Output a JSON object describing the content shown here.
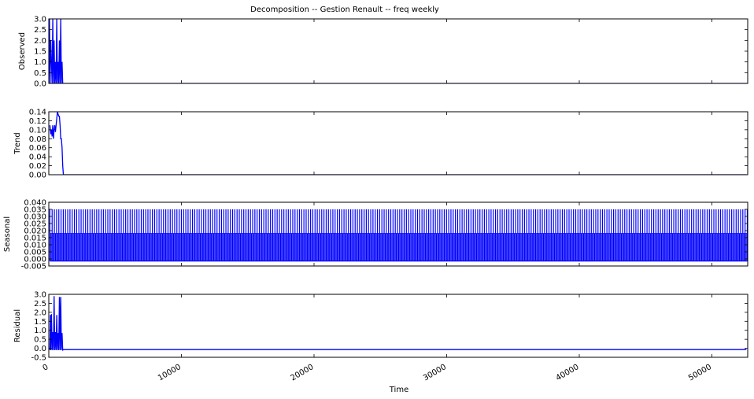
{
  "title": "Decomposition -- Gestion Renault -- freq weekly",
  "colors": {
    "line": "#0000ff",
    "axes": "#000000",
    "background": "#ffffff"
  },
  "chart_data": {
    "type": "line",
    "title": "Decomposition -- Gestion Renault -- freq weekly",
    "xlabel": "Time",
    "xlim": [
      0,
      52700
    ],
    "x_ticks": [
      0,
      10000,
      20000,
      30000,
      40000,
      50000
    ],
    "x_tick_labels": [
      "0",
      "10000",
      "20000",
      "30000",
      "40000",
      "50000"
    ],
    "panels": [
      {
        "key": "observed",
        "ylabel": "Observed",
        "ylim": [
          0,
          3.0
        ],
        "y_ticks": [
          0,
          0.5,
          1.0,
          1.5,
          2.0,
          2.5,
          3.0
        ],
        "y_tick_labels": [
          "0.0",
          "0.5",
          "1.0",
          "1.5",
          "2.0",
          "2.5",
          "3.0"
        ],
        "series": [
          {
            "x": [
              0,
              50,
              100,
              150,
              250,
              300,
              350,
              400,
              450,
              500,
              550,
              600,
              650,
              700,
              750,
              800,
              850,
              900,
              950,
              1000,
              1050,
              1100,
              52700
            ],
            "y": [
              0,
              3,
              0,
              2,
              0,
              3,
              0,
              2,
              0,
              1,
              0,
              3,
              0,
              1,
              0,
              2,
              0,
              3,
              0,
              1,
              0,
              0,
              0
            ]
          }
        ]
      },
      {
        "key": "trend",
        "ylabel": "Trend",
        "ylim": [
          0,
          0.14
        ],
        "y_ticks": [
          0,
          0.02,
          0.04,
          0.06,
          0.08,
          0.1,
          0.12,
          0.14
        ],
        "y_tick_labels": [
          "0.00",
          "0.02",
          "0.04",
          "0.06",
          "0.08",
          "0.10",
          "0.12",
          "0.14"
        ],
        "series": [
          {
            "x": [
              84,
              150,
              200,
              250,
              300,
              350,
              400,
              450,
              500,
              550,
              600,
              650,
              700,
              750,
              800,
              850,
              900,
              950,
              1000,
              1050,
              1100,
              52600
            ],
            "y": [
              0.11,
              0.09,
              0.1,
              0.085,
              0.11,
              0.08,
              0.1,
              0.11,
              0.095,
              0.11,
              0.125,
              0.14,
              0.135,
              0.13,
              0.13,
              0.11,
              0.08,
              0.08,
              0.06,
              0.02,
              0.0,
              0.0
            ]
          }
        ]
      },
      {
        "key": "seasonal",
        "ylabel": "Seasonal",
        "ylim": [
          -0.005,
          0.04
        ],
        "y_ticks": [
          -0.005,
          0,
          0.005,
          0.01,
          0.015,
          0.02,
          0.025,
          0.03,
          0.035,
          0.04
        ],
        "y_tick_labels": [
          "-0.005",
          "0.000",
          "0.005",
          "0.010",
          "0.015",
          "0.020",
          "0.025",
          "0.030",
          "0.035",
          "0.040"
        ],
        "pattern": {
          "period": 168,
          "base": -0.0015,
          "peak": 0.035,
          "mid": 0.018,
          "mid_offset": 0.5
        }
      },
      {
        "key": "residual",
        "ylabel": "Residual",
        "ylim": [
          -0.5,
          3.0
        ],
        "y_ticks": [
          -0.5,
          0,
          0.5,
          1.0,
          1.5,
          2.0,
          2.5,
          3.0
        ],
        "y_tick_labels": [
          "-0.5",
          "0.0",
          "0.5",
          "1.0",
          "1.5",
          "2.0",
          "2.5",
          "3.0"
        ],
        "series": [
          {
            "x": [
              84,
              120,
              150,
              200,
              250,
              300,
              350,
              400,
              450,
              500,
              550,
              600,
              650,
              700,
              750,
              800,
              850,
              900,
              950,
              1000,
              1050,
              1100,
              1150,
              52600
            ],
            "y": [
              -0.1,
              1.85,
              -0.1,
              1.9,
              -0.1,
              0.9,
              -0.1,
              2.9,
              -0.1,
              0.9,
              -0.1,
              1.85,
              -0.1,
              0.85,
              -0.1,
              2.85,
              -0.1,
              2.85,
              -0.1,
              0.85,
              -0.1,
              -0.08,
              -0.07,
              -0.07
            ]
          }
        ]
      }
    ]
  }
}
